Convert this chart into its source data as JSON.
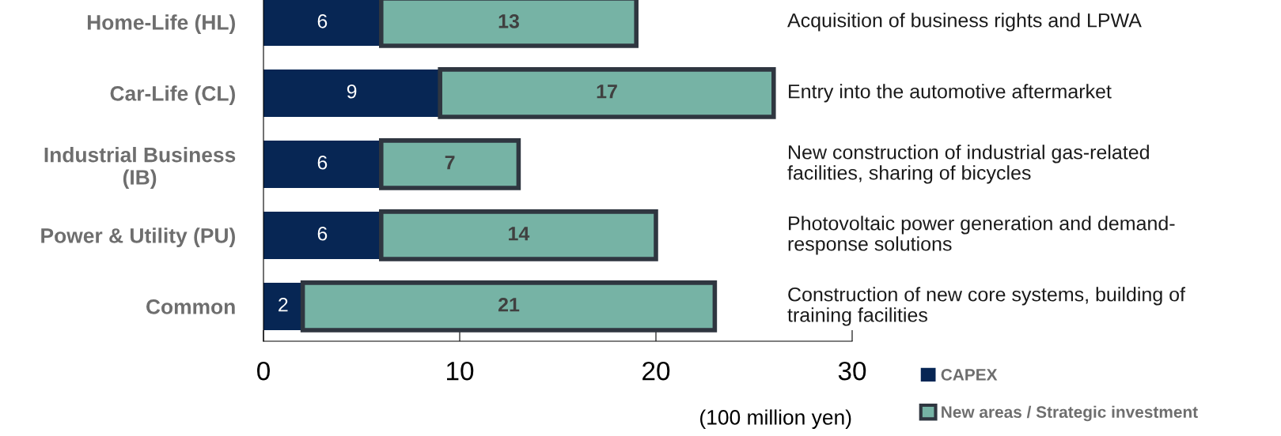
{
  "chart_data": {
    "type": "bar",
    "orientation": "horizontal",
    "stacked": true,
    "categories": [
      "Home-Life (HL)",
      "Car-Life (CL)",
      "Industrial Business\n(IB)",
      "Power & Utility (PU)",
      "Common"
    ],
    "series": [
      {
        "name": "CAPEX",
        "color": "#072654",
        "values": [
          6,
          9,
          6,
          6,
          2
        ]
      },
      {
        "name": "New areas / Strategic investment",
        "color": "#76b3a5",
        "values": [
          13,
          17,
          7,
          14,
          21
        ]
      }
    ],
    "xlim": [
      0,
      30
    ],
    "xticks": [
      0,
      10,
      20,
      30
    ],
    "xlabel": "(100 million yen)",
    "data_labels": true,
    "legend": "bottom right",
    "grid": false,
    "annotations": [
      "Acquisition of business rights and LPWA",
      "Entry into the automotive aftermarket",
      "New construction of industrial gas-related\nfacilities, sharing of bicycles",
      "Photovoltaic power generation and demand-\nresponse solutions",
      "Construction of new core systems, building of\ntraining facilities"
    ]
  }
}
